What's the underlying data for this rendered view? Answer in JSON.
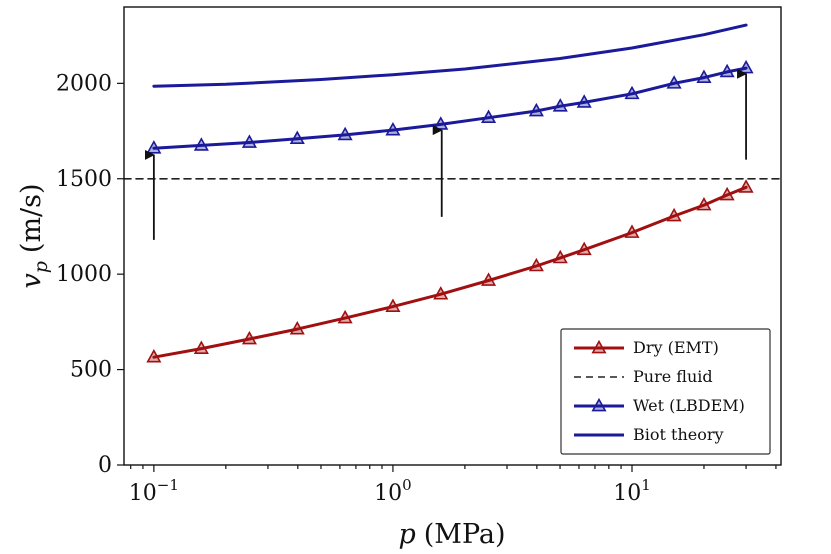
{
  "chart_data": {
    "type": "line",
    "xscale": "log",
    "xlim": [
      0.075,
      42
    ],
    "ylim": [
      0,
      2400
    ],
    "grid": false,
    "legend_position": "lower-right",
    "xlabel": {
      "var": "p",
      "unit": "(MPa)"
    },
    "ylabel": {
      "var": "v",
      "sub": "p",
      "unit": "(m/s)"
    },
    "x_ticks": [
      {
        "value": 0.1,
        "base": "10",
        "exp": "−1"
      },
      {
        "value": 1,
        "base": "10",
        "exp": "0"
      },
      {
        "value": 10,
        "base": "10",
        "exp": "1"
      }
    ],
    "y_ticks": [
      {
        "value": 0,
        "label": "0"
      },
      {
        "value": 500,
        "label": "500"
      },
      {
        "value": 1000,
        "label": "1000"
      },
      {
        "value": 1500,
        "label": "1500"
      },
      {
        "value": 2000,
        "label": "2000"
      }
    ],
    "series": [
      {
        "name": "Dry (EMT)",
        "color": "#a01010",
        "style": "line-marker",
        "x": [
          0.1,
          0.158,
          0.251,
          0.398,
          0.631,
          1.0,
          1.585,
          2.512,
          3.981,
          5.012,
          6.31,
          10.0,
          15.0,
          20.0,
          25.0,
          30.0
        ],
        "y": [
          565,
          610,
          660,
          712,
          770,
          830,
          895,
          967,
          1043,
          1085,
          1128,
          1218,
          1305,
          1362,
          1415,
          1455
        ]
      },
      {
        "name": "Pure fluid",
        "color": "#222222",
        "style": "dashed",
        "x": [
          0.075,
          42
        ],
        "y": [
          1500,
          1500
        ]
      },
      {
        "name": "Wet (LBDEM)",
        "color": "#1a1a9a",
        "style": "line-marker",
        "x": [
          0.1,
          0.158,
          0.251,
          0.398,
          0.631,
          1.0,
          1.585,
          2.512,
          3.981,
          5.012,
          6.31,
          10.0,
          15.0,
          20.0,
          25.0,
          30.0
        ],
        "y": [
          1660,
          1675,
          1690,
          1710,
          1730,
          1755,
          1785,
          1820,
          1855,
          1880,
          1900,
          1945,
          2000,
          2030,
          2060,
          2080
        ]
      },
      {
        "name": "Biot theory",
        "color": "#1a1a9a",
        "style": "line",
        "x": [
          0.1,
          0.2,
          0.5,
          1.0,
          2.0,
          5.0,
          10.0,
          20.0,
          30.0
        ],
        "y": [
          1985,
          1995,
          2020,
          2045,
          2075,
          2130,
          2185,
          2255,
          2305
        ]
      }
    ],
    "annotations": [
      {
        "type": "arrow",
        "x": 0.1,
        "y_from": 1180,
        "y_to": 1625
      },
      {
        "type": "arrow",
        "x": 1.6,
        "y_from": 1300,
        "y_to": 1755
      },
      {
        "type": "arrow",
        "x": 30,
        "y_from": 1600,
        "y_to": 2050
      }
    ]
  }
}
